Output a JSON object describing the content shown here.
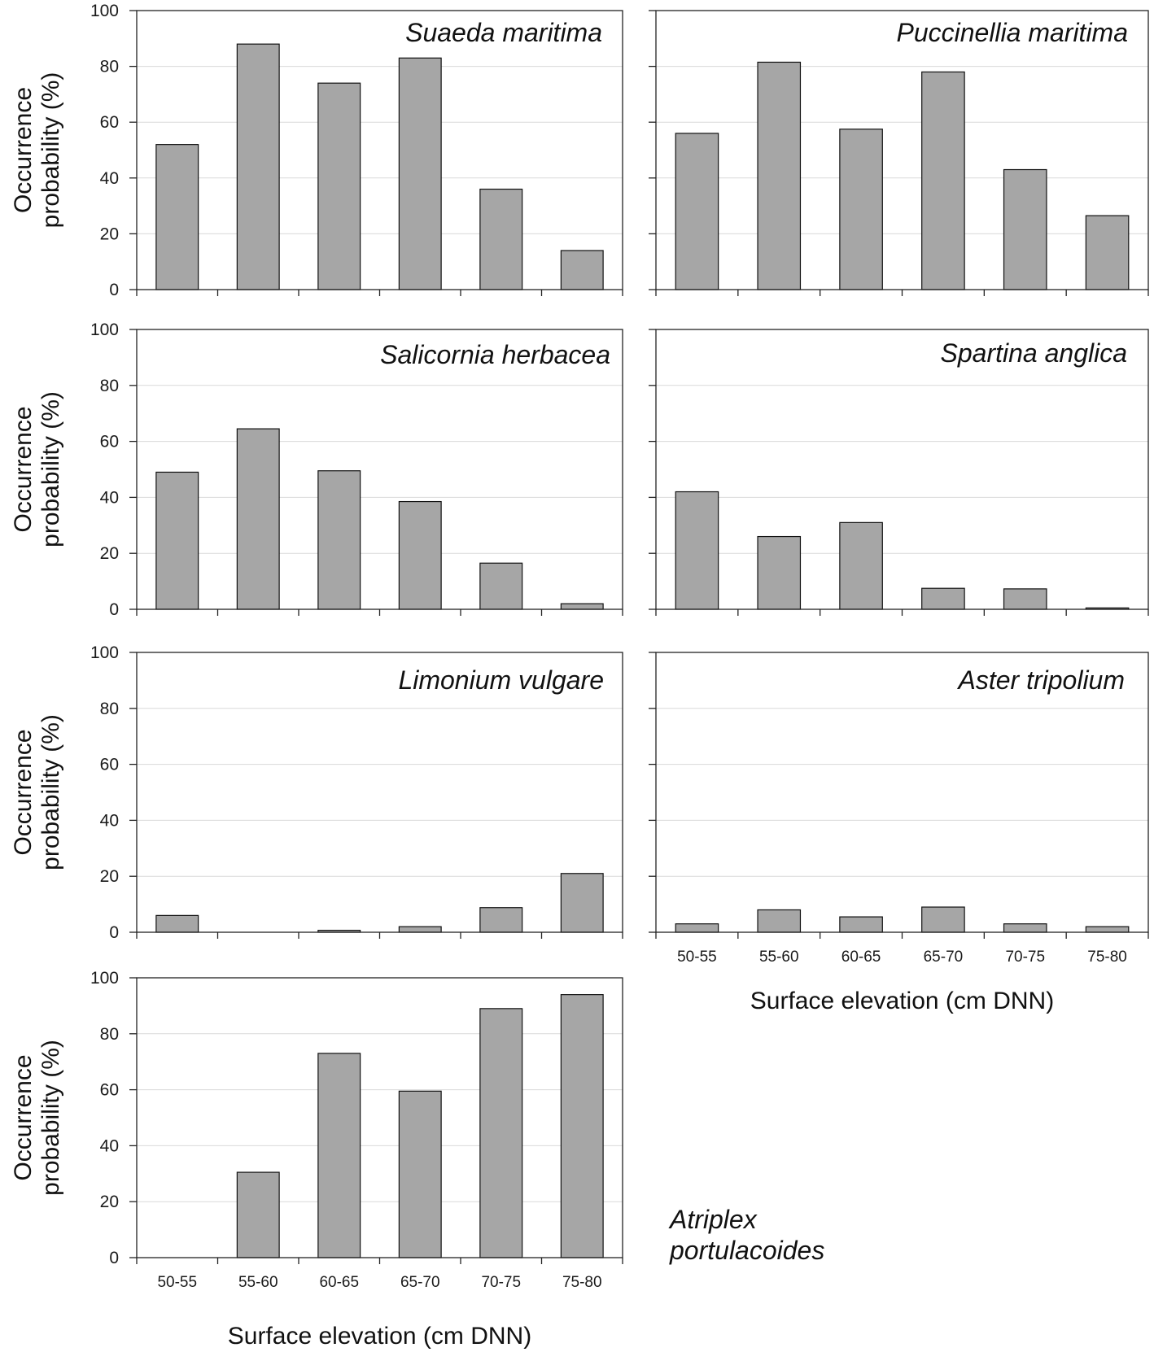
{
  "chart_data": [
    {
      "type": "bar",
      "title": "Suaeda maritima",
      "categories": [
        "50-55",
        "55-60",
        "60-65",
        "65-70",
        "70-75",
        "75-80"
      ],
      "values": [
        52,
        88,
        74,
        83,
        36,
        14
      ],
      "ylabel_line1": "Occurrence",
      "ylabel_line2": "probability (%)",
      "xlabel": "",
      "ylim": [
        0,
        100
      ],
      "yticks": [
        "0",
        "20",
        "40",
        "60",
        "80",
        "100"
      ],
      "grid": true
    },
    {
      "type": "bar",
      "title": "Puccinellia maritima",
      "categories": [
        "50-55",
        "55-60",
        "60-65",
        "65-70",
        "70-75",
        "75-80"
      ],
      "values": [
        56,
        81.5,
        57.5,
        78,
        43,
        26.5
      ],
      "xlabel": "",
      "ylim": [
        0,
        100
      ],
      "grid": true
    },
    {
      "type": "bar",
      "title": "Salicornia herbacea",
      "categories": [
        "50-55",
        "55-60",
        "60-65",
        "65-70",
        "70-75",
        "75-80"
      ],
      "values": [
        49,
        64.5,
        49.5,
        38.5,
        16.5,
        2
      ],
      "ylabel_line1": "Occurrence",
      "ylabel_line2": "probability (%)",
      "xlabel": "",
      "ylim": [
        0,
        100
      ],
      "yticks": [
        "0",
        "20",
        "40",
        "60",
        "80",
        "100"
      ],
      "grid": true
    },
    {
      "type": "bar",
      "title": "Spartina anglica",
      "categories": [
        "50-55",
        "55-60",
        "60-65",
        "65-70",
        "70-75",
        "75-80"
      ],
      "values": [
        42,
        26,
        31,
        7.5,
        7.3,
        0.5
      ],
      "xlabel": "",
      "ylim": [
        0,
        100
      ],
      "grid": true
    },
    {
      "type": "bar",
      "title": "Limonium vulgare",
      "categories": [
        "50-55",
        "55-60",
        "60-65",
        "65-70",
        "70-75",
        "75-80"
      ],
      "values": [
        6,
        0,
        0.7,
        2,
        8.8,
        21
      ],
      "ylabel_line1": "Occurrence",
      "ylabel_line2": "probability (%)",
      "xlabel": "",
      "ylim": [
        0,
        100
      ],
      "yticks": [
        "0",
        "20",
        "40",
        "60",
        "80",
        "100"
      ],
      "grid": true
    },
    {
      "type": "bar",
      "title": "Aster tripolium",
      "categories": [
        "50-55",
        "55-60",
        "60-65",
        "65-70",
        "70-75",
        "75-80"
      ],
      "values": [
        3,
        8,
        5.5,
        9,
        3,
        2
      ],
      "xlabel": "Surface elevation (cm DNN)",
      "ylim": [
        0,
        100
      ],
      "grid": true
    },
    {
      "type": "bar",
      "title_line1": "Atriplex",
      "title_line2": "portulacoides",
      "categories": [
        "50-55",
        "55-60",
        "60-65",
        "65-70",
        "70-75",
        "75-80"
      ],
      "values": [
        0,
        30.5,
        73,
        59.5,
        89,
        94
      ],
      "ylabel_line1": "Occurrence",
      "ylabel_line2": "probability (%)",
      "xlabel": "Surface elevation (cm DNN)",
      "ylim": [
        0,
        100
      ],
      "yticks": [
        "0",
        "20",
        "40",
        "60",
        "80",
        "100"
      ],
      "grid": true
    }
  ]
}
